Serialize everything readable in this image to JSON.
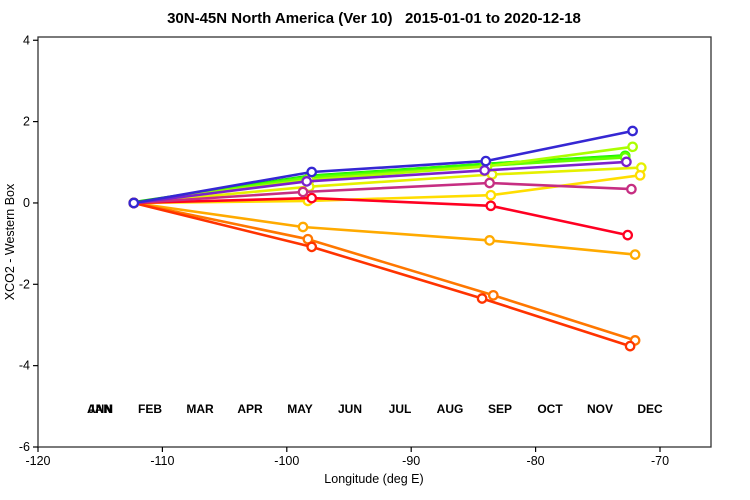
{
  "title": "30N-45N North America (Ver 10)   2015-01-01 to 2020-12-18",
  "chart_data": {
    "type": "line",
    "title": "30N-45N North America (Ver 10)   2015-01-01 to 2020-12-18",
    "xlabel": "Longitude (deg E)",
    "ylabel": "XCO2 - Western Box",
    "xlim": [
      -120,
      -65.9
    ],
    "ylim": [
      -6,
      4.08
    ],
    "xticks": [
      -120,
      -110,
      -100,
      -90,
      -80,
      -70
    ],
    "yticks": [
      -6,
      -4,
      -2,
      0,
      2,
      4
    ],
    "grid": false,
    "legend_position": "bottom-inside",
    "marker": "open-circle",
    "series": [
      {
        "name": "ANN",
        "color": "#00C000",
        "lw": 4.2,
        "legend_slot": 0,
        "points": [
          [
            -112.3,
            0
          ],
          [
            -98.1,
            0.65
          ],
          [
            -84.0,
            0.94
          ],
          [
            -72.8,
            1.15
          ]
        ]
      },
      {
        "name": "JAN",
        "color": "#2FFF00",
        "lw": 2.6,
        "legend_slot": 0,
        "points": [
          [
            -112.3,
            0
          ],
          [
            -98.1,
            0.66
          ],
          [
            -84.0,
            0.96
          ],
          [
            -72.8,
            1.16
          ]
        ]
      },
      {
        "name": "FEB",
        "color": "#66FF00",
        "lw": 2.6,
        "legend_slot": 1,
        "points": [
          [
            -112.3,
            0
          ],
          [
            -98.2,
            0.62
          ],
          [
            -84.1,
            0.91
          ],
          [
            -72.8,
            1.12
          ]
        ]
      },
      {
        "name": "MAR",
        "color": "#AAFF00",
        "lw": 2.6,
        "legend_slot": 2,
        "points": [
          [
            -112.3,
            0
          ],
          [
            -98.2,
            0.57
          ],
          [
            -83.9,
            0.9
          ],
          [
            -72.2,
            1.38
          ]
        ]
      },
      {
        "name": "APR",
        "color": "#E5F000",
        "lw": 2.6,
        "legend_slot": 3,
        "points": [
          [
            -112.3,
            0
          ],
          [
            -98.2,
            0.4
          ],
          [
            -83.5,
            0.7
          ],
          [
            -71.5,
            0.87
          ]
        ]
      },
      {
        "name": "MAY",
        "color": "#FFDD00",
        "lw": 2.6,
        "legend_slot": 4,
        "points": [
          [
            -112.3,
            0
          ],
          [
            -98.3,
            0.05
          ],
          [
            -83.6,
            0.19
          ],
          [
            -71.6,
            0.68
          ]
        ]
      },
      {
        "name": "JUN",
        "color": "#FFAA00",
        "lw": 2.6,
        "legend_slot": 5,
        "points": [
          [
            -112.3,
            0
          ],
          [
            -98.7,
            -0.59
          ],
          [
            -83.7,
            -0.92
          ],
          [
            -72.0,
            -1.27
          ]
        ]
      },
      {
        "name": "JUL",
        "color": "#FF7700",
        "lw": 2.6,
        "legend_slot": 6,
        "points": [
          [
            -112.3,
            0
          ],
          [
            -98.3,
            -0.89
          ],
          [
            -83.4,
            -2.27
          ],
          [
            -72.0,
            -3.38
          ]
        ]
      },
      {
        "name": "AUG",
        "color": "#FF3300",
        "lw": 2.6,
        "legend_slot": 7,
        "points": [
          [
            -112.3,
            0
          ],
          [
            -98.0,
            -1.08
          ],
          [
            -84.3,
            -2.35
          ],
          [
            -72.4,
            -3.52
          ]
        ]
      },
      {
        "name": "SEP",
        "color": "#FF0022",
        "lw": 2.6,
        "legend_slot": 8,
        "points": [
          [
            -112.3,
            0
          ],
          [
            -98.0,
            0.12
          ],
          [
            -83.6,
            -0.07
          ],
          [
            -72.6,
            -0.79
          ]
        ]
      },
      {
        "name": "OCT",
        "color": "#C62E82",
        "lw": 2.6,
        "legend_slot": 9,
        "points": [
          [
            -112.3,
            0
          ],
          [
            -98.7,
            0.27
          ],
          [
            -83.7,
            0.49
          ],
          [
            -72.3,
            0.34
          ]
        ]
      },
      {
        "name": "NOV",
        "color": "#7B22CC",
        "lw": 2.6,
        "legend_slot": 10,
        "points": [
          [
            -112.3,
            0
          ],
          [
            -98.4,
            0.53
          ],
          [
            -84.1,
            0.8
          ],
          [
            -72.7,
            1.01
          ]
        ]
      },
      {
        "name": "DEC",
        "color": "#3527D3",
        "lw": 2.6,
        "legend_slot": 11,
        "points": [
          [
            -112.3,
            0
          ],
          [
            -98.0,
            0.76
          ],
          [
            -84.0,
            1.03
          ],
          [
            -72.2,
            1.77
          ]
        ]
      }
    ]
  }
}
